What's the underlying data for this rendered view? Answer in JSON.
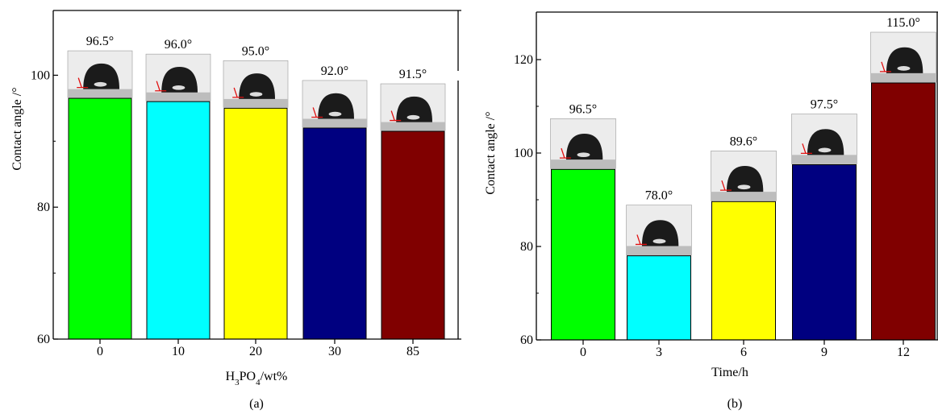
{
  "chart_data": [
    {
      "panel_label": "(a)",
      "type": "bar",
      "xlabel_parts": {
        "base": "H",
        "sub1": "3",
        "mid": "PO",
        "sub2": "4",
        "tail": "/wt%"
      },
      "ylabel": "Contact angle /°",
      "categories": [
        "0",
        "10",
        "20",
        "30",
        "85"
      ],
      "values": [
        96.5,
        96.0,
        95.0,
        92.0,
        91.5
      ],
      "value_labels": [
        "96.5°",
        "96.0°",
        "95.0°",
        "92.0°",
        "91.5°"
      ],
      "colors": [
        "#00ff00",
        "#00ffff",
        "#ffff00",
        "#000080",
        "#800000"
      ],
      "ylim": [
        60,
        100
      ],
      "yticks": [
        "60",
        "80",
        "100"
      ],
      "inset_images": "droplet photo",
      "grid": false,
      "legend": "none"
    },
    {
      "panel_label": "(b)",
      "type": "bar",
      "xlabel": "Time/h",
      "ylabel": "Contact angle /°",
      "categories": [
        "0",
        "3",
        "6",
        "9",
        "12"
      ],
      "values": [
        96.5,
        78.0,
        89.6,
        97.5,
        115.0
      ],
      "value_labels": [
        "96.5°",
        "78.0°",
        "89.6°",
        "97.5°",
        "115.0°"
      ],
      "colors": [
        "#00ff00",
        "#00ffff",
        "#ffff00",
        "#000080",
        "#800000"
      ],
      "ylim": [
        60,
        130
      ],
      "yticks": [
        "60",
        "80",
        "100",
        "120"
      ],
      "inset_images": "droplet photo",
      "grid": false,
      "legend": "none"
    }
  ]
}
